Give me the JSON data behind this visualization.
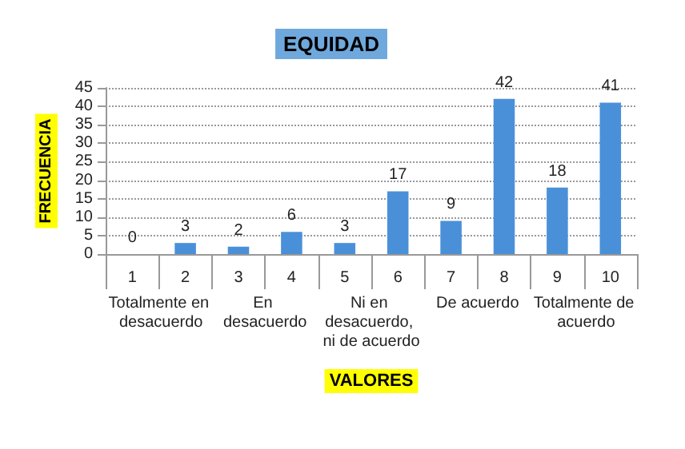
{
  "chart_data": {
    "type": "bar",
    "title": "EQUIDAD",
    "xlabel": "VALORES",
    "ylabel": "FRECUENCIA",
    "categories": [
      "1",
      "2",
      "3",
      "4",
      "5",
      "6",
      "7",
      "8",
      "9",
      "10"
    ],
    "values": [
      0,
      3,
      2,
      6,
      3,
      17,
      9,
      42,
      18,
      41
    ],
    "color": "#4a90d9",
    "ylim": [
      0,
      45
    ],
    "yticks": [
      0,
      5,
      10,
      15,
      20,
      25,
      30,
      35,
      40,
      45
    ],
    "grid": "y",
    "data_labels": true,
    "annotations": [
      "Totalmente en desacuerdo",
      "En desacuerdo",
      "Ni en desacuerdo, ni de acuerdo",
      "De acuerdo",
      "Totalmente de acuerdo"
    ]
  }
}
